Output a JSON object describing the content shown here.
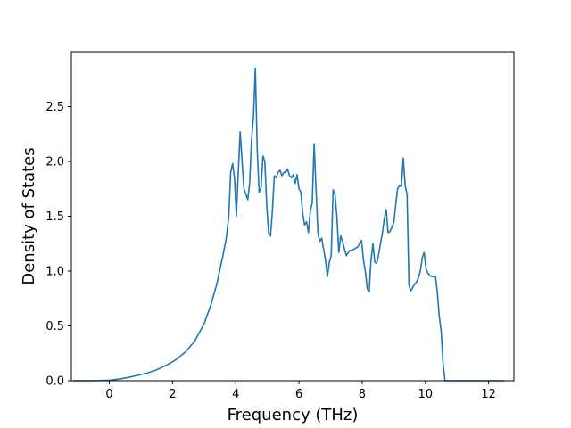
{
  "chart_data": {
    "type": "line",
    "title": "",
    "xlabel": "Frequency (THz)",
    "ylabel": "Density of States",
    "xlim": [
      -1.2,
      12.8
    ],
    "ylim": [
      0,
      3.0
    ],
    "xticks": [
      0,
      2,
      4,
      6,
      8,
      10,
      12
    ],
    "xtick_labels": [
      "0",
      "2",
      "4",
      "6",
      "8",
      "10",
      "12"
    ],
    "yticks": [
      0,
      0.5,
      1.0,
      1.5,
      2.0,
      2.5
    ],
    "ytick_labels": [
      "0.0",
      "0.5",
      "1.0",
      "1.5",
      "2.0",
      "2.5"
    ],
    "grid": false,
    "series": [
      {
        "color": "#1f77b4",
        "x": [
          -1.15,
          -0.5,
          0.0,
          0.3,
          0.6,
          0.9,
          1.2,
          1.5,
          1.8,
          2.1,
          2.4,
          2.7,
          3.0,
          3.2,
          3.4,
          3.6,
          3.7,
          3.78,
          3.84,
          3.9,
          3.96,
          4.02,
          4.08,
          4.14,
          4.2,
          4.26,
          4.32,
          4.38,
          4.44,
          4.5,
          4.56,
          4.62,
          4.68,
          4.74,
          4.8,
          4.86,
          4.92,
          4.98,
          5.04,
          5.1,
          5.16,
          5.22,
          5.28,
          5.34,
          5.4,
          5.46,
          5.52,
          5.58,
          5.64,
          5.7,
          5.76,
          5.82,
          5.88,
          5.94,
          6.0,
          6.06,
          6.12,
          6.18,
          6.24,
          6.3,
          6.36,
          6.42,
          6.48,
          6.54,
          6.6,
          6.66,
          6.72,
          6.78,
          6.84,
          6.9,
          6.96,
          7.02,
          7.08,
          7.14,
          7.2,
          7.26,
          7.32,
          7.38,
          7.44,
          7.5,
          7.56,
          7.62,
          7.68,
          7.74,
          7.8,
          7.86,
          7.92,
          7.98,
          8.04,
          8.1,
          8.16,
          8.22,
          8.28,
          8.34,
          8.4,
          8.46,
          8.52,
          8.58,
          8.64,
          8.7,
          8.76,
          8.82,
          8.88,
          8.94,
          9.0,
          9.06,
          9.12,
          9.18,
          9.24,
          9.3,
          9.36,
          9.42,
          9.48,
          9.54,
          9.6,
          9.66,
          9.72,
          9.78,
          9.84,
          9.9,
          9.96,
          10.02,
          10.08,
          10.14,
          10.2,
          10.26,
          10.32,
          10.38,
          10.44,
          10.5,
          10.56,
          10.62,
          10.68,
          10.74,
          10.8,
          10.86,
          10.92,
          10.98,
          11.04,
          11.1,
          11.16,
          11.22,
          11.28,
          11.34,
          11.4,
          11.5,
          11.8,
          12.0,
          12.2,
          12.5
        ],
        "y": [
          0.0,
          0.0,
          0.005,
          0.015,
          0.03,
          0.05,
          0.07,
          0.1,
          0.14,
          0.19,
          0.26,
          0.36,
          0.52,
          0.68,
          0.88,
          1.15,
          1.3,
          1.5,
          1.9,
          1.98,
          1.85,
          1.5,
          1.9,
          2.27,
          2.0,
          1.75,
          1.7,
          1.65,
          1.8,
          2.2,
          2.4,
          2.85,
          2.1,
          1.72,
          1.76,
          2.05,
          2.0,
          1.6,
          1.35,
          1.32,
          1.55,
          1.87,
          1.85,
          1.9,
          1.92,
          1.87,
          1.9,
          1.9,
          1.93,
          1.87,
          1.85,
          1.88,
          1.8,
          1.88,
          1.75,
          1.72,
          1.52,
          1.42,
          1.45,
          1.35,
          1.55,
          1.62,
          2.16,
          1.75,
          1.35,
          1.27,
          1.3,
          1.2,
          1.1,
          0.95,
          1.08,
          1.14,
          1.74,
          1.7,
          1.5,
          1.17,
          1.32,
          1.27,
          1.2,
          1.14,
          1.17,
          1.19,
          1.19,
          1.2,
          1.21,
          1.22,
          1.25,
          1.28,
          1.1,
          1.0,
          0.84,
          0.81,
          1.1,
          1.25,
          1.08,
          1.07,
          1.15,
          1.25,
          1.35,
          1.48,
          1.56,
          1.35,
          1.36,
          1.4,
          1.44,
          1.6,
          1.75,
          1.78,
          1.77,
          2.03,
          1.78,
          1.7,
          0.87,
          0.82,
          0.85,
          0.88,
          0.9,
          0.94,
          1.0,
          1.12,
          1.17,
          1.02,
          0.98,
          0.96,
          0.95,
          0.95,
          0.95,
          0.8,
          0.58,
          0.45,
          0.15,
          0.0,
          0.0,
          0.0,
          0.0,
          0.0,
          0.0,
          0.0,
          0.0,
          0.0,
          0.0,
          0.0,
          0.0,
          0.0,
          0.0,
          0.0,
          0.0,
          0.0,
          0.0,
          0.0
        ]
      }
    ]
  }
}
